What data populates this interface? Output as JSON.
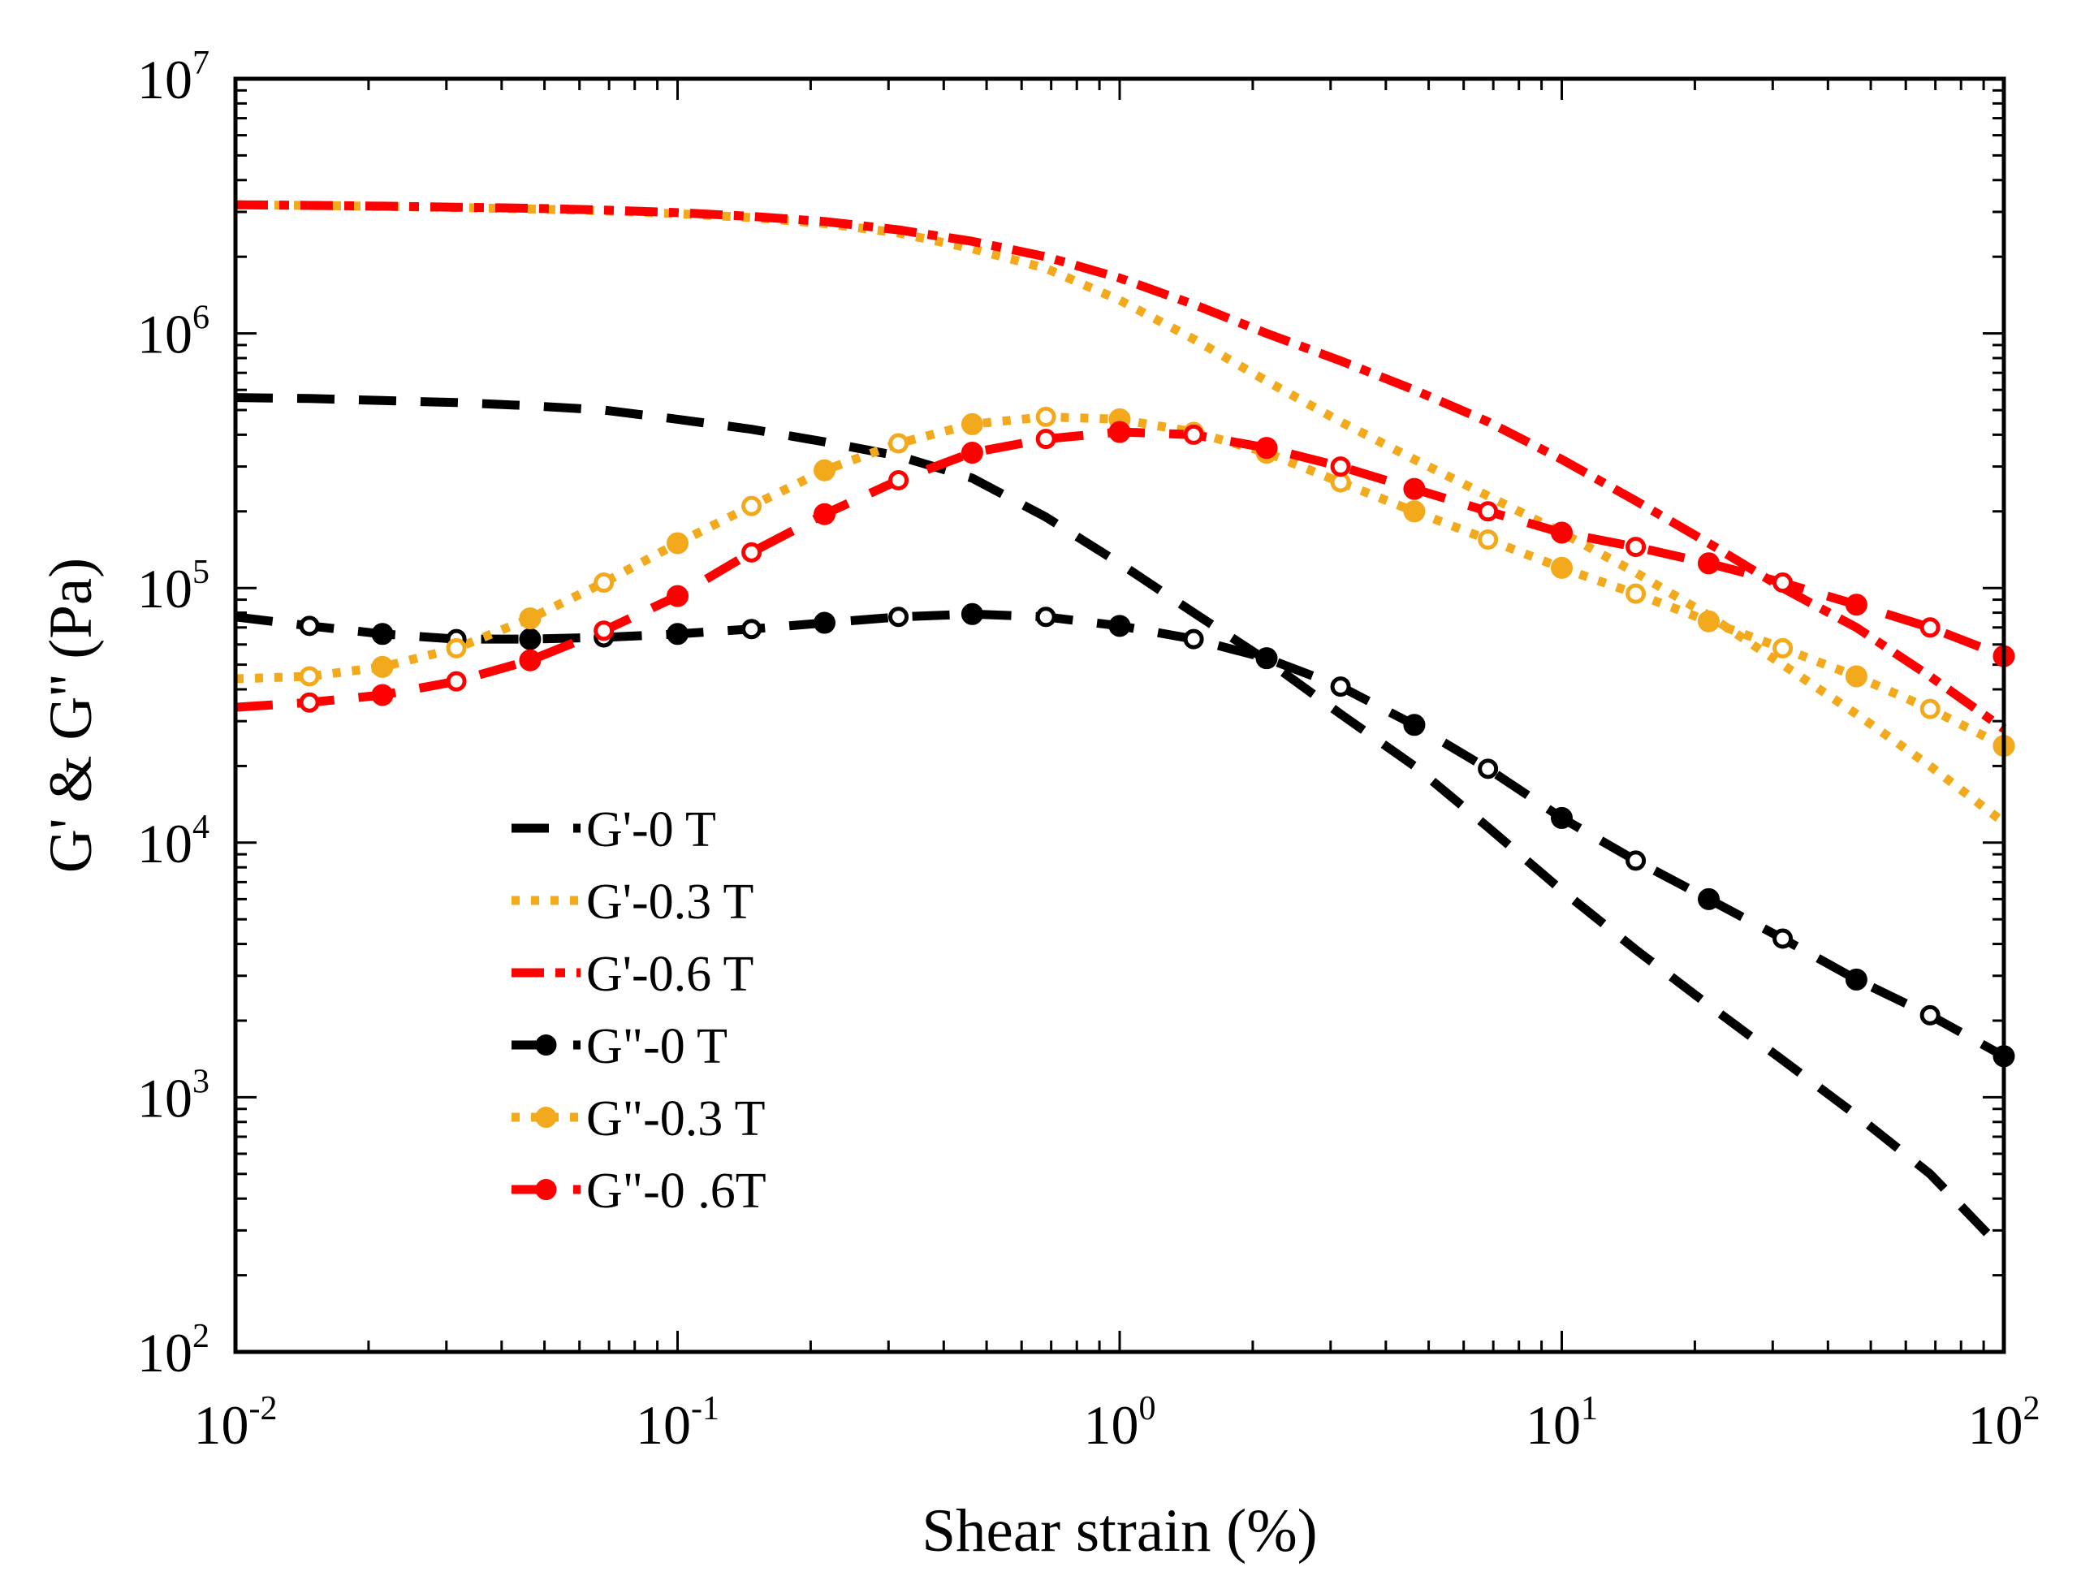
{
  "chart_data": {
    "type": "line",
    "xscale": "log",
    "yscale": "log",
    "xlabel": "Shear strain (%)",
    "ylabel": "G' & G'' (Pa)",
    "xlim": [
      0.01,
      100
    ],
    "ylim": [
      100,
      10000000
    ],
    "x_ticks": [
      {
        "value": 0.01,
        "base": "10",
        "exp": "-2"
      },
      {
        "value": 0.1,
        "base": "10",
        "exp": "-1"
      },
      {
        "value": 1,
        "base": "10",
        "exp": "0"
      },
      {
        "value": 10,
        "base": "10",
        "exp": "1"
      },
      {
        "value": 100,
        "base": "10",
        "exp": "2"
      }
    ],
    "y_ticks": [
      {
        "value": 100,
        "base": "10",
        "exp": "2"
      },
      {
        "value": 1000,
        "base": "10",
        "exp": "3"
      },
      {
        "value": 10000,
        "base": "10",
        "exp": "4"
      },
      {
        "value": 100000,
        "base": "10",
        "exp": "5"
      },
      {
        "value": 1000000,
        "base": "10",
        "exp": "6"
      },
      {
        "value": 10000000,
        "base": "10",
        "exp": "7"
      }
    ],
    "legend_position": "lower-left",
    "series": [
      {
        "name": "G'-0 T",
        "color": "#000000",
        "style": "dashed",
        "marker": "none",
        "x": [
          0.01,
          0.0147,
          0.0215,
          0.0316,
          0.0464,
          0.0681,
          0.1,
          0.147,
          0.215,
          0.316,
          0.464,
          0.681,
          1,
          1.47,
          2.15,
          3.16,
          4.64,
          6.81,
          10,
          14.7,
          21.5,
          31.6,
          46.4,
          68.1,
          100
        ],
        "y": [
          560000,
          555000,
          545000,
          535000,
          520000,
          500000,
          460000,
          420000,
          375000,
          330000,
          270000,
          190000,
          125000,
          80000,
          52000,
          32000,
          20000,
          11500,
          6500,
          3800,
          2300,
          1400,
          850,
          500,
          250
        ]
      },
      {
        "name": "G'-0.3 T",
        "color": "#f2a91c",
        "style": "dotted",
        "marker": "none",
        "x": [
          0.01,
          0.0147,
          0.0215,
          0.0316,
          0.0464,
          0.0681,
          0.1,
          0.147,
          0.215,
          0.316,
          0.464,
          0.681,
          1,
          1.47,
          2.15,
          3.16,
          4.64,
          6.81,
          10,
          14.7,
          21.5,
          31.6,
          46.4,
          68.1,
          100
        ],
        "y": [
          3200000,
          3180000,
          3150000,
          3120000,
          3080000,
          3030000,
          2950000,
          2850000,
          2700000,
          2480000,
          2150000,
          1800000,
          1350000,
          950000,
          650000,
          450000,
          320000,
          230000,
          165000,
          115000,
          78000,
          50000,
          32000,
          20000,
          12000
        ]
      },
      {
        "name": "G'-0.6 T",
        "color": "#ff0000",
        "style": "dash-dot",
        "marker": "none",
        "x": [
          0.01,
          0.0147,
          0.0215,
          0.0316,
          0.0464,
          0.0681,
          0.1,
          0.147,
          0.215,
          0.316,
          0.464,
          0.681,
          1,
          1.47,
          2.15,
          3.16,
          4.64,
          6.81,
          10,
          14.7,
          21.5,
          31.6,
          46.4,
          68.1,
          100
        ],
        "y": [
          3200000,
          3180000,
          3160000,
          3130000,
          3100000,
          3050000,
          2980000,
          2880000,
          2750000,
          2550000,
          2300000,
          2000000,
          1650000,
          1300000,
          1000000,
          780000,
          600000,
          450000,
          320000,
          220000,
          150000,
          100000,
          70000,
          45000,
          28000
        ]
      },
      {
        "name": "G\"-0 T",
        "color": "#000000",
        "style": "dashed",
        "marker": "circle",
        "x": [
          0.01,
          0.0147,
          0.0215,
          0.0316,
          0.0464,
          0.0681,
          0.1,
          0.147,
          0.215,
          0.316,
          0.464,
          0.681,
          1,
          1.47,
          2.15,
          3.16,
          4.64,
          6.81,
          10,
          14.7,
          21.5,
          31.6,
          46.4,
          68.1,
          100
        ],
        "y": [
          77000,
          71000,
          66000,
          63000,
          63000,
          64000,
          66000,
          69000,
          73000,
          77000,
          79000,
          77000,
          71000,
          63000,
          53000,
          41000,
          29000,
          19500,
          12500,
          8500,
          6000,
          4200,
          2900,
          2100,
          1450
        ]
      },
      {
        "name": "G\"-0.3 T",
        "color": "#f2a91c",
        "style": "dotted",
        "marker": "circle",
        "x": [
          0.01,
          0.0147,
          0.0215,
          0.0316,
          0.0464,
          0.0681,
          0.1,
          0.147,
          0.215,
          0.316,
          0.464,
          0.681,
          1,
          1.47,
          2.15,
          3.16,
          4.64,
          6.81,
          10,
          14.7,
          21.5,
          31.6,
          46.4,
          68.1,
          100
        ],
        "y": [
          44000,
          45000,
          49000,
          58000,
          76000,
          105000,
          150000,
          210000,
          290000,
          370000,
          440000,
          470000,
          460000,
          410000,
          340000,
          260000,
          200000,
          155000,
          120000,
          95000,
          74000,
          58000,
          45000,
          33500,
          24000
        ]
      },
      {
        "name": "G\"-0 .6T",
        "color": "#ff0000",
        "style": "dashed",
        "marker": "circle",
        "x": [
          0.01,
          0.0147,
          0.0215,
          0.0316,
          0.0464,
          0.0681,
          0.1,
          0.147,
          0.215,
          0.316,
          0.464,
          0.681,
          1,
          1.47,
          2.15,
          3.16,
          4.64,
          6.81,
          10,
          14.7,
          21.5,
          31.6,
          46.4,
          68.1,
          100
        ],
        "y": [
          34000,
          35500,
          38000,
          43000,
          52000,
          68000,
          93000,
          138000,
          195000,
          265000,
          340000,
          385000,
          410000,
          400000,
          355000,
          300000,
          245000,
          200000,
          165000,
          145000,
          125000,
          105000,
          86000,
          70000,
          54000
        ]
      }
    ]
  }
}
